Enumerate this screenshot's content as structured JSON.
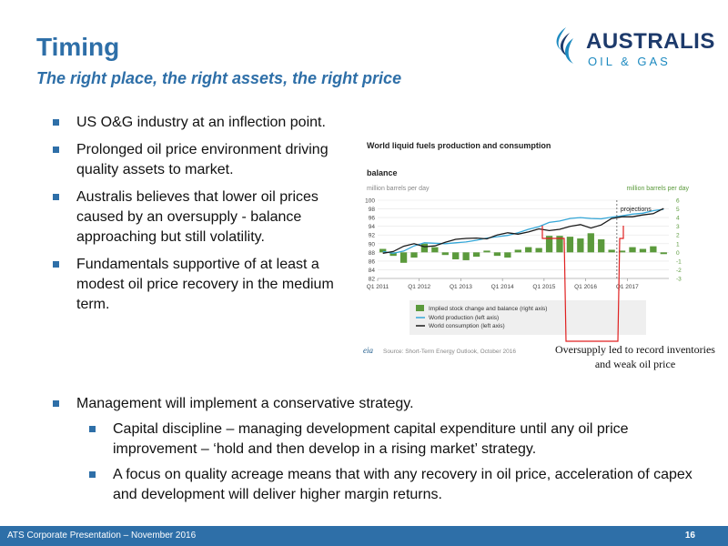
{
  "title": "Timing",
  "subtitle": "The right place, the right assets, the right price",
  "logo": {
    "name": "AUSTRALIS",
    "tagline": "OIL & GAS",
    "color_primary": "#1d3a6b",
    "color_accent": "#1d8ac0"
  },
  "bullets": [
    "US O&G industry at an inflection point.",
    "Prolonged oil price environment driving quality assets to market.",
    "Australis believes that lower oil prices caused by an oversupply - balance approaching but still volatility.",
    "Fundamentals supportive of at least a modest oil price recovery in the medium term."
  ],
  "lower_bullets": {
    "main": "Management will implement a conservative strategy.",
    "subs": [
      "Capital discipline – managing development capital expenditure until any oil price improvement – ‘hold and then develop in a rising market’ strategy.",
      "A focus on quality acreage means that with any recovery in oil price, acceleration of capex and development will deliver higher margin returns."
    ]
  },
  "callout": "Oversupply led to record inventories and weak oil price",
  "footer": {
    "text": "ATS Corporate Presentation – November 2016",
    "page": "16"
  },
  "colors": {
    "brand": "#2e6fa8",
    "bar": "#5b9a3c",
    "production": "#35a7d8",
    "consumption": "#1a1a1a",
    "callout_line": "#e02020"
  },
  "chart_data": {
    "type": "bar",
    "title": "World liquid fuels production and consumption balance",
    "left_axis_label": "million barrels per day",
    "right_axis_label": "million barrels per day",
    "left_ylim": [
      82,
      100
    ],
    "left_ticks": [
      "82",
      "84",
      "86",
      "88",
      "90",
      "92",
      "94",
      "96",
      "98",
      "100"
    ],
    "right_ylim": [
      -3,
      6
    ],
    "right_ticks": [
      "-3",
      "-2",
      "-1",
      "0",
      "1",
      "2",
      "3",
      "4",
      "5",
      "6"
    ],
    "x_tick_labels": [
      "Q1 2011",
      "Q1 2012",
      "Q1 2013",
      "Q1 2014",
      "Q1 2015",
      "Q1 2016",
      "Q1 2017"
    ],
    "projection_label": "projections",
    "source": "Source: Short-Term Energy Outlook, October 2016",
    "source_logo": "eia",
    "legend": [
      "Implied stock change and balance (right axis)",
      "World production (left axis)",
      "World consumption (left axis)"
    ],
    "quarters": [
      "Q1 2011",
      "Q2 2011",
      "Q3 2011",
      "Q4 2011",
      "Q1 2012",
      "Q2 2012",
      "Q3 2012",
      "Q4 2012",
      "Q1 2013",
      "Q2 2013",
      "Q3 2013",
      "Q4 2013",
      "Q1 2014",
      "Q2 2014",
      "Q3 2014",
      "Q4 2014",
      "Q1 2015",
      "Q2 2015",
      "Q3 2015",
      "Q4 2015",
      "Q1 2016",
      "Q2 2016",
      "Q3 2016",
      "Q4 2016",
      "Q1 2017",
      "Q2 2017",
      "Q3 2017",
      "Q4 2017"
    ],
    "stock_change": [
      0.4,
      -0.4,
      -1.2,
      -0.6,
      1.0,
      0.6,
      -0.3,
      -0.8,
      -0.9,
      -0.5,
      0.2,
      -0.4,
      -0.6,
      0.3,
      0.6,
      0.5,
      1.9,
      1.9,
      1.8,
      1.6,
      2.2,
      1.5,
      0.3,
      0.2,
      0.6,
      0.4,
      0.7,
      -0.2
    ],
    "world_production": [
      88.2,
      87.8,
      88.3,
      89.5,
      90.2,
      90.1,
      90.0,
      90.2,
      90.4,
      90.8,
      91.3,
      91.6,
      91.9,
      92.5,
      93.3,
      93.9,
      94.9,
      95.2,
      95.8,
      96.0,
      95.8,
      95.7,
      96.1,
      96.4,
      96.8,
      97.0,
      97.6,
      97.9
    ],
    "world_consumption": [
      87.8,
      88.2,
      89.4,
      90.0,
      89.3,
      89.5,
      90.3,
      91.0,
      91.2,
      91.3,
      91.1,
      92.0,
      92.5,
      92.2,
      92.7,
      93.4,
      93.0,
      93.3,
      94.0,
      94.4,
      93.6,
      94.3,
      95.8,
      96.2,
      96.2,
      96.6,
      96.9,
      98.1
    ],
    "projection_start_index": 23
  }
}
